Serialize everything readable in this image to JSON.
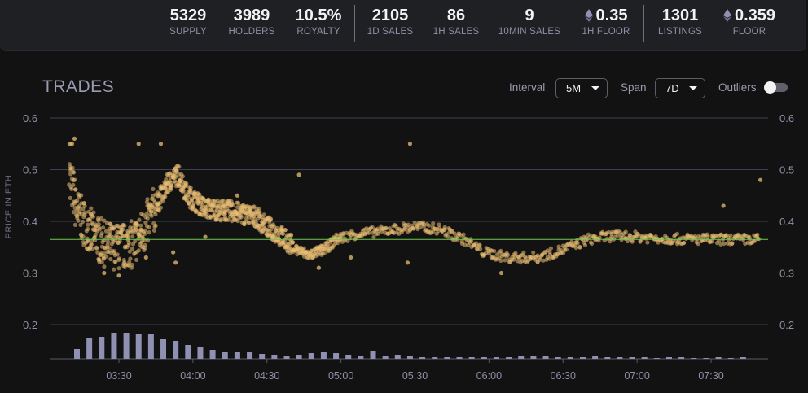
{
  "stats": [
    {
      "value": "5329",
      "label": "SUPPLY",
      "eth": false
    },
    {
      "value": "3989",
      "label": "HOLDERS",
      "eth": false
    },
    {
      "value": "10.5%",
      "label": "ROYALTY",
      "eth": false
    },
    {
      "value": "2105",
      "label": "1D SALES",
      "eth": false
    },
    {
      "value": "86",
      "label": "1H SALES",
      "eth": false
    },
    {
      "value": "9",
      "label": "10MIN SALES",
      "eth": false
    },
    {
      "value": "0.35",
      "label": "1H FLOOR",
      "eth": true
    },
    {
      "value": "1301",
      "label": "LISTINGS",
      "eth": false
    },
    {
      "value": "0.359",
      "label": "FLOOR",
      "eth": true
    }
  ],
  "panel": {
    "title": "TRADES",
    "interval_label": "Interval",
    "interval_value": "5M",
    "span_label": "Span",
    "span_value": "7D",
    "outliers_label": "Outliers",
    "outliers_on": false
  },
  "colors": {
    "dots": "#e9be72",
    "floor_line": "#6fc94f",
    "volume": "#8f90b2",
    "grid": "#3f4052"
  },
  "chart_data": {
    "type": "scatter",
    "title": "TRADES",
    "ylabel": "PRICE IN ETH",
    "xlabel": "",
    "ylim": [
      0.13,
      0.6
    ],
    "y_ticks": [
      0.2,
      0.3,
      0.4,
      0.5,
      0.6
    ],
    "x_ticks": [
      "03:30",
      "04:00",
      "04:30",
      "05:00",
      "05:30",
      "06:00",
      "06:30",
      "07:00",
      "07:30"
    ],
    "xlim": [
      "03:07",
      "07:57"
    ],
    "floor_price": 0.365,
    "trend": [
      [
        "03:10",
        0.49
      ],
      [
        "03:13",
        0.42
      ],
      [
        "03:17",
        0.39
      ],
      [
        "03:20",
        0.37
      ],
      [
        "03:25",
        0.355
      ],
      [
        "03:30",
        0.35
      ],
      [
        "03:35",
        0.355
      ],
      [
        "03:40",
        0.38
      ],
      [
        "03:45",
        0.43
      ],
      [
        "03:50",
        0.475
      ],
      [
        "03:54",
        0.49
      ],
      [
        "03:58",
        0.45
      ],
      [
        "04:05",
        0.425
      ],
      [
        "04:15",
        0.42
      ],
      [
        "04:25",
        0.41
      ],
      [
        "04:30",
        0.39
      ],
      [
        "04:36",
        0.37
      ],
      [
        "04:42",
        0.345
      ],
      [
        "04:47",
        0.335
      ],
      [
        "04:53",
        0.345
      ],
      [
        "04:58",
        0.365
      ],
      [
        "05:05",
        0.375
      ],
      [
        "05:15",
        0.38
      ],
      [
        "05:30",
        0.39
      ],
      [
        "05:40",
        0.385
      ],
      [
        "05:50",
        0.365
      ],
      [
        "05:58",
        0.34
      ],
      [
        "06:08",
        0.33
      ],
      [
        "06:20",
        0.33
      ],
      [
        "06:30",
        0.345
      ],
      [
        "06:40",
        0.365
      ],
      [
        "06:50",
        0.372
      ],
      [
        "07:00",
        0.37
      ],
      [
        "07:15",
        0.366
      ],
      [
        "07:30",
        0.365
      ],
      [
        "07:50",
        0.365
      ]
    ],
    "outliers": [
      [
        "03:10",
        0.55
      ],
      [
        "03:11",
        0.55
      ],
      [
        "03:12",
        0.56
      ],
      [
        "03:38",
        0.55
      ],
      [
        "03:47",
        0.55
      ],
      [
        "05:28",
        0.55
      ],
      [
        "07:35",
        0.43
      ],
      [
        "07:50",
        0.48
      ],
      [
        "04:43",
        0.49
      ],
      [
        "04:05",
        0.37
      ],
      [
        "03:41",
        0.33
      ],
      [
        "03:52",
        0.34
      ],
      [
        "03:53",
        0.32
      ],
      [
        "05:04",
        0.33
      ],
      [
        "05:27",
        0.32
      ],
      [
        "04:18",
        0.45
      ],
      [
        "03:24",
        0.3
      ],
      [
        "03:30",
        0.295
      ],
      [
        "04:51",
        0.31
      ],
      [
        "06:05",
        0.3
      ]
    ],
    "volume_bars": [
      {
        "x": "03:13",
        "v": 12
      },
      {
        "x": "03:18",
        "v": 25
      },
      {
        "x": "03:23",
        "v": 27
      },
      {
        "x": "03:28",
        "v": 32
      },
      {
        "x": "03:33",
        "v": 32
      },
      {
        "x": "03:38",
        "v": 30
      },
      {
        "x": "03:43",
        "v": 31
      },
      {
        "x": "03:48",
        "v": 24
      },
      {
        "x": "03:53",
        "v": 22
      },
      {
        "x": "03:58",
        "v": 17
      },
      {
        "x": "04:03",
        "v": 14
      },
      {
        "x": "04:08",
        "v": 11
      },
      {
        "x": "04:13",
        "v": 9
      },
      {
        "x": "04:18",
        "v": 8
      },
      {
        "x": "04:23",
        "v": 8
      },
      {
        "x": "04:28",
        "v": 6
      },
      {
        "x": "04:33",
        "v": 5
      },
      {
        "x": "04:38",
        "v": 4
      },
      {
        "x": "04:43",
        "v": 5
      },
      {
        "x": "04:48",
        "v": 7
      },
      {
        "x": "04:53",
        "v": 9
      },
      {
        "x": "04:58",
        "v": 7
      },
      {
        "x": "05:03",
        "v": 5
      },
      {
        "x": "05:08",
        "v": 4
      },
      {
        "x": "05:13",
        "v": 10
      },
      {
        "x": "05:18",
        "v": 4
      },
      {
        "x": "05:23",
        "v": 5
      },
      {
        "x": "05:28",
        "v": 3
      },
      {
        "x": "05:33",
        "v": 2
      },
      {
        "x": "05:38",
        "v": 2
      },
      {
        "x": "05:43",
        "v": 2
      },
      {
        "x": "05:48",
        "v": 2
      },
      {
        "x": "05:53",
        "v": 2
      },
      {
        "x": "05:58",
        "v": 2
      },
      {
        "x": "06:03",
        "v": 2
      },
      {
        "x": "06:08",
        "v": 2
      },
      {
        "x": "06:13",
        "v": 3
      },
      {
        "x": "06:18",
        "v": 4
      },
      {
        "x": "06:23",
        "v": 3
      },
      {
        "x": "06:28",
        "v": 2
      },
      {
        "x": "06:33",
        "v": 2
      },
      {
        "x": "06:38",
        "v": 2
      },
      {
        "x": "06:43",
        "v": 3
      },
      {
        "x": "06:48",
        "v": 2
      },
      {
        "x": "06:53",
        "v": 2
      },
      {
        "x": "06:58",
        "v": 2
      },
      {
        "x": "07:03",
        "v": 2
      },
      {
        "x": "07:08",
        "v": 1
      },
      {
        "x": "07:13",
        "v": 2
      },
      {
        "x": "07:18",
        "v": 2
      },
      {
        "x": "07:23",
        "v": 1
      },
      {
        "x": "07:28",
        "v": 1
      },
      {
        "x": "07:33",
        "v": 2
      },
      {
        "x": "07:38",
        "v": 1
      },
      {
        "x": "07:43",
        "v": 2
      }
    ]
  }
}
